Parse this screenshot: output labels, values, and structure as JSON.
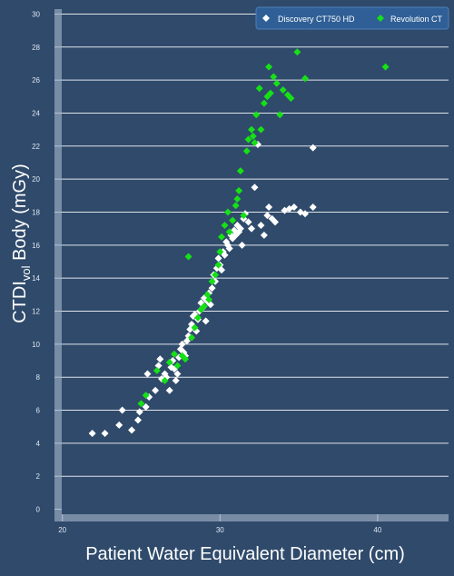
{
  "chart_data": {
    "type": "scatter",
    "title": "",
    "xlabel": "Patient Water Equivalent Diameter (cm)",
    "ylabel_main": "CTDI",
    "ylabel_sub": "vol",
    "ylabel_rest": " Body (mGy)",
    "xlim": [
      19.5,
      44.5
    ],
    "ylim": [
      -0.3,
      30.3
    ],
    "x_ticks": [
      20,
      30,
      40
    ],
    "y_ticks": [
      0,
      2,
      4,
      6,
      8,
      10,
      12,
      14,
      16,
      18,
      20,
      22,
      24,
      26,
      28,
      30
    ],
    "grid": "horizontal",
    "legend_position": "top-right",
    "colors": {
      "background": "#2f4a6b",
      "plot_area": "#2f4a6b",
      "axis": "#b4c3d7",
      "grid": "#ffffff",
      "legend_bg": "#2f5f96",
      "tick_text": "#dde6f1",
      "label_text": "#ffffff"
    },
    "series": [
      {
        "name": "Discovery CT750 HD",
        "color": "#ffffff",
        "marker": "diamond",
        "points": [
          [
            21.9,
            4.6
          ],
          [
            22.7,
            4.6
          ],
          [
            23.6,
            5.1
          ],
          [
            23.8,
            6.0
          ],
          [
            24.4,
            4.8
          ],
          [
            24.8,
            5.4
          ],
          [
            24.9,
            5.9
          ],
          [
            25.3,
            6.2
          ],
          [
            25.5,
            6.8
          ],
          [
            25.4,
            8.2
          ],
          [
            25.9,
            7.2
          ],
          [
            26.1,
            8.7
          ],
          [
            26.2,
            9.1
          ],
          [
            26.3,
            7.9
          ],
          [
            26.5,
            8.2
          ],
          [
            26.6,
            8.0
          ],
          [
            26.8,
            7.2
          ],
          [
            26.9,
            8.6
          ],
          [
            27.0,
            9.0
          ],
          [
            27.1,
            8.5
          ],
          [
            27.2,
            7.8
          ],
          [
            27.3,
            8.2
          ],
          [
            27.4,
            9.2
          ],
          [
            27.5,
            9.7
          ],
          [
            27.6,
            10.0
          ],
          [
            27.7,
            9.5
          ],
          [
            27.8,
            9.3
          ],
          [
            27.9,
            10.2
          ],
          [
            28.0,
            10.5
          ],
          [
            28.1,
            10.9
          ],
          [
            28.2,
            11.2
          ],
          [
            28.3,
            11.7
          ],
          [
            28.4,
            11.8
          ],
          [
            28.5,
            10.8
          ],
          [
            28.6,
            11.5
          ],
          [
            28.7,
            12.0
          ],
          [
            28.8,
            12.5
          ],
          [
            28.9,
            12.2
          ],
          [
            29.0,
            12.8
          ],
          [
            29.1,
            11.4
          ],
          [
            29.2,
            12.6
          ],
          [
            29.3,
            13.1
          ],
          [
            29.4,
            12.4
          ],
          [
            29.5,
            13.4
          ],
          [
            29.6,
            14.2
          ],
          [
            29.7,
            13.8
          ],
          [
            29.8,
            14.6
          ],
          [
            29.9,
            15.2
          ],
          [
            30.0,
            14.8
          ],
          [
            30.1,
            14.5
          ],
          [
            30.2,
            15.6
          ],
          [
            30.3,
            15.4
          ],
          [
            30.4,
            16.2
          ],
          [
            30.5,
            16.0
          ],
          [
            30.6,
            15.8
          ],
          [
            30.7,
            16.6
          ],
          [
            30.8,
            16.4
          ],
          [
            30.9,
            16.9
          ],
          [
            31.0,
            16.6
          ],
          [
            31.1,
            17.2
          ],
          [
            31.2,
            16.8
          ],
          [
            31.3,
            17.0
          ],
          [
            31.4,
            16.0
          ],
          [
            31.5,
            17.6
          ],
          [
            31.6,
            17.9
          ],
          [
            31.8,
            17.4
          ],
          [
            32.0,
            17.0
          ],
          [
            32.2,
            19.5
          ],
          [
            32.4,
            22.1
          ],
          [
            32.6,
            17.2
          ],
          [
            32.8,
            16.6
          ],
          [
            33.0,
            17.8
          ],
          [
            33.1,
            18.3
          ],
          [
            33.3,
            17.6
          ],
          [
            33.5,
            17.4
          ],
          [
            34.1,
            18.1
          ],
          [
            34.4,
            18.2
          ],
          [
            34.7,
            18.3
          ],
          [
            35.1,
            18.0
          ],
          [
            35.4,
            17.9
          ],
          [
            35.9,
            18.3
          ],
          [
            35.9,
            21.9
          ]
        ]
      },
      {
        "name": "Revolution CT",
        "color": "#16e016",
        "marker": "diamond",
        "points": [
          [
            25.0,
            6.4
          ],
          [
            25.3,
            6.9
          ],
          [
            26.0,
            8.4
          ],
          [
            26.5,
            7.8
          ],
          [
            26.8,
            8.9
          ],
          [
            27.1,
            9.4
          ],
          [
            27.3,
            8.7
          ],
          [
            27.6,
            9.3
          ],
          [
            27.8,
            9.1
          ],
          [
            28.0,
            15.3
          ],
          [
            28.2,
            10.4
          ],
          [
            28.4,
            11.0
          ],
          [
            28.6,
            11.6
          ],
          [
            28.8,
            12.1
          ],
          [
            29.0,
            12.3
          ],
          [
            29.2,
            13.0
          ],
          [
            29.3,
            12.7
          ],
          [
            29.5,
            13.8
          ],
          [
            29.7,
            14.2
          ],
          [
            29.9,
            14.8
          ],
          [
            30.0,
            15.6
          ],
          [
            30.1,
            16.5
          ],
          [
            30.3,
            17.2
          ],
          [
            30.5,
            18.0
          ],
          [
            30.6,
            16.8
          ],
          [
            30.8,
            17.5
          ],
          [
            31.0,
            18.4
          ],
          [
            31.1,
            18.8
          ],
          [
            31.2,
            19.3
          ],
          [
            31.3,
            20.5
          ],
          [
            31.5,
            17.8
          ],
          [
            31.7,
            21.7
          ],
          [
            31.8,
            22.4
          ],
          [
            32.0,
            23.0
          ],
          [
            32.1,
            22.6
          ],
          [
            32.2,
            22.2
          ],
          [
            32.3,
            23.9
          ],
          [
            32.5,
            25.5
          ],
          [
            32.6,
            23.0
          ],
          [
            32.8,
            24.6
          ],
          [
            33.0,
            25.0
          ],
          [
            33.1,
            26.8
          ],
          [
            33.2,
            25.2
          ],
          [
            33.4,
            26.2
          ],
          [
            33.6,
            25.8
          ],
          [
            33.8,
            23.9
          ],
          [
            34.0,
            25.4
          ],
          [
            34.3,
            25.1
          ],
          [
            34.5,
            24.9
          ],
          [
            34.9,
            27.7
          ],
          [
            35.4,
            26.1
          ],
          [
            40.5,
            26.8
          ]
        ]
      }
    ]
  }
}
